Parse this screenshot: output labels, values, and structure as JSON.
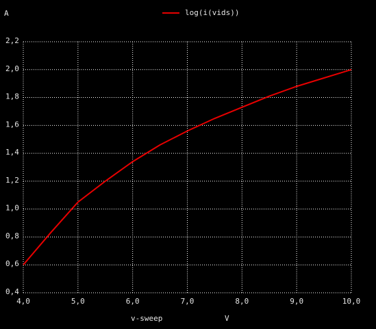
{
  "chart_data": {
    "type": "line",
    "y_unit": "A",
    "xlabel": "v-sweep",
    "x_unit": "V",
    "x": [
      4,
      4.5,
      5,
      5.5,
      6,
      6.5,
      7,
      7.5,
      8,
      8.5,
      9,
      9.5,
      10
    ],
    "series": [
      {
        "name": "log(i(vids))",
        "color": "#e80000",
        "values": [
          0.6,
          0.83,
          1.05,
          1.2,
          1.34,
          1.46,
          1.56,
          1.65,
          1.73,
          1.81,
          1.88,
          1.94,
          2.0
        ]
      }
    ],
    "xlim": [
      4,
      10
    ],
    "xticks": [
      {
        "value": 4,
        "label": "4,0"
      },
      {
        "value": 5,
        "label": "5,0"
      },
      {
        "value": 6,
        "label": "6,0"
      },
      {
        "value": 7,
        "label": "7,0"
      },
      {
        "value": 8,
        "label": "8,0"
      },
      {
        "value": 9,
        "label": "9,0"
      },
      {
        "value": 10,
        "label": "10,0"
      }
    ],
    "ylim": [
      0.4,
      2.2
    ],
    "yticks": [
      {
        "value": 0.4,
        "label": "0,4"
      },
      {
        "value": 0.6,
        "label": "0,6"
      },
      {
        "value": 0.8,
        "label": "0,8"
      },
      {
        "value": 1.0,
        "label": "1,0"
      },
      {
        "value": 1.2,
        "label": "1,2"
      },
      {
        "value": 1.4,
        "label": "1,4"
      },
      {
        "value": 1.6,
        "label": "1,6"
      },
      {
        "value": 1.8,
        "label": "1,8"
      },
      {
        "value": 2.0,
        "label": "2,0"
      },
      {
        "value": 2.2,
        "label": "2,2"
      }
    ],
    "grid": true,
    "background": "#000000",
    "grid_color": "#ffffff"
  }
}
